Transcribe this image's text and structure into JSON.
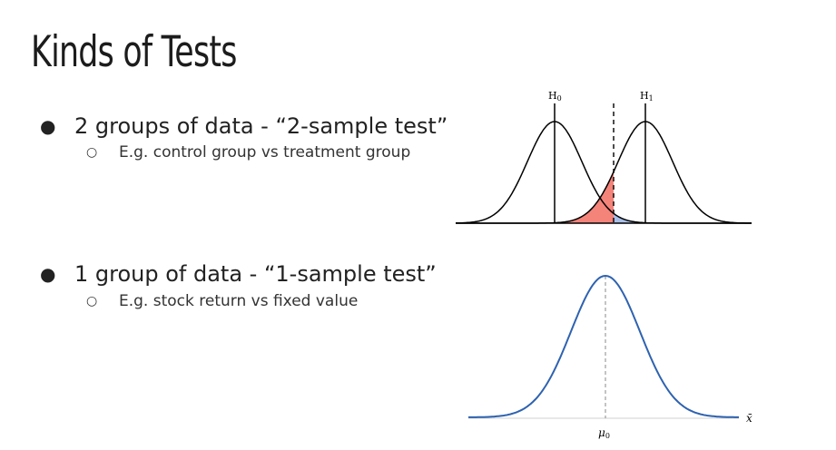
{
  "slide": {
    "title": "Kinds of Tests",
    "bullets": [
      {
        "marker": "●",
        "text": "2 groups of data - “2-sample test”",
        "sub": {
          "marker": "○",
          "text": "E.g. control group vs treatment group"
        }
      },
      {
        "marker": "●",
        "text": "1 group of data - “1-sample test”",
        "sub": {
          "marker": "○",
          "text": "E.g. stock return vs fixed value"
        }
      }
    ]
  },
  "figures": {
    "two_sample": {
      "h0_label": "H",
      "h0_sub": "0",
      "h1_label": "H",
      "h1_sub": "1",
      "alpha_color": "#f4837a",
      "beta_color": "#a9bfe8"
    },
    "one_sample": {
      "mu_label": "μ",
      "mu_sub": "0",
      "x_label": "x̄",
      "curve_color": "#2e62b0"
    }
  }
}
